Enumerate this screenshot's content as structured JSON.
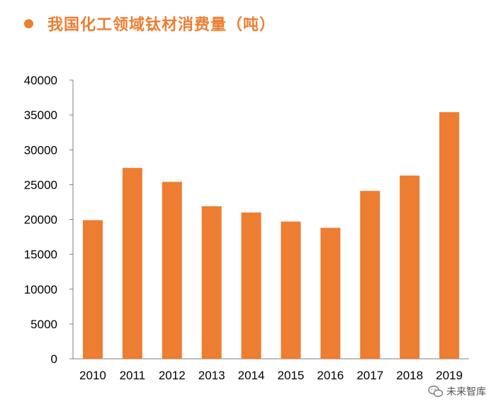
{
  "title": "我国化工领域钛材消费量（吨）",
  "colors": {
    "bar": "#ED7D31",
    "title": "#ED7D31",
    "axis": "#7F7F7F",
    "text": "#000000"
  },
  "watermark": {
    "text": "未来智库",
    "icon": "wechat-icon"
  },
  "chart_data": {
    "type": "bar",
    "title": "我国化工领域钛材消费量（吨）",
    "xlabel": "",
    "ylabel": "",
    "categories": [
      "2010",
      "2011",
      "2012",
      "2013",
      "2014",
      "2015",
      "2016",
      "2017",
      "2018",
      "2019"
    ],
    "values": [
      19900,
      27400,
      25400,
      21900,
      21000,
      19700,
      18800,
      24100,
      26300,
      35400
    ],
    "ylim": [
      0,
      40000
    ],
    "yticks": [
      "0",
      "5000",
      "10000",
      "15000",
      "20000",
      "25000",
      "30000",
      "35000",
      "40000"
    ],
    "grid": false,
    "legend": "none"
  }
}
